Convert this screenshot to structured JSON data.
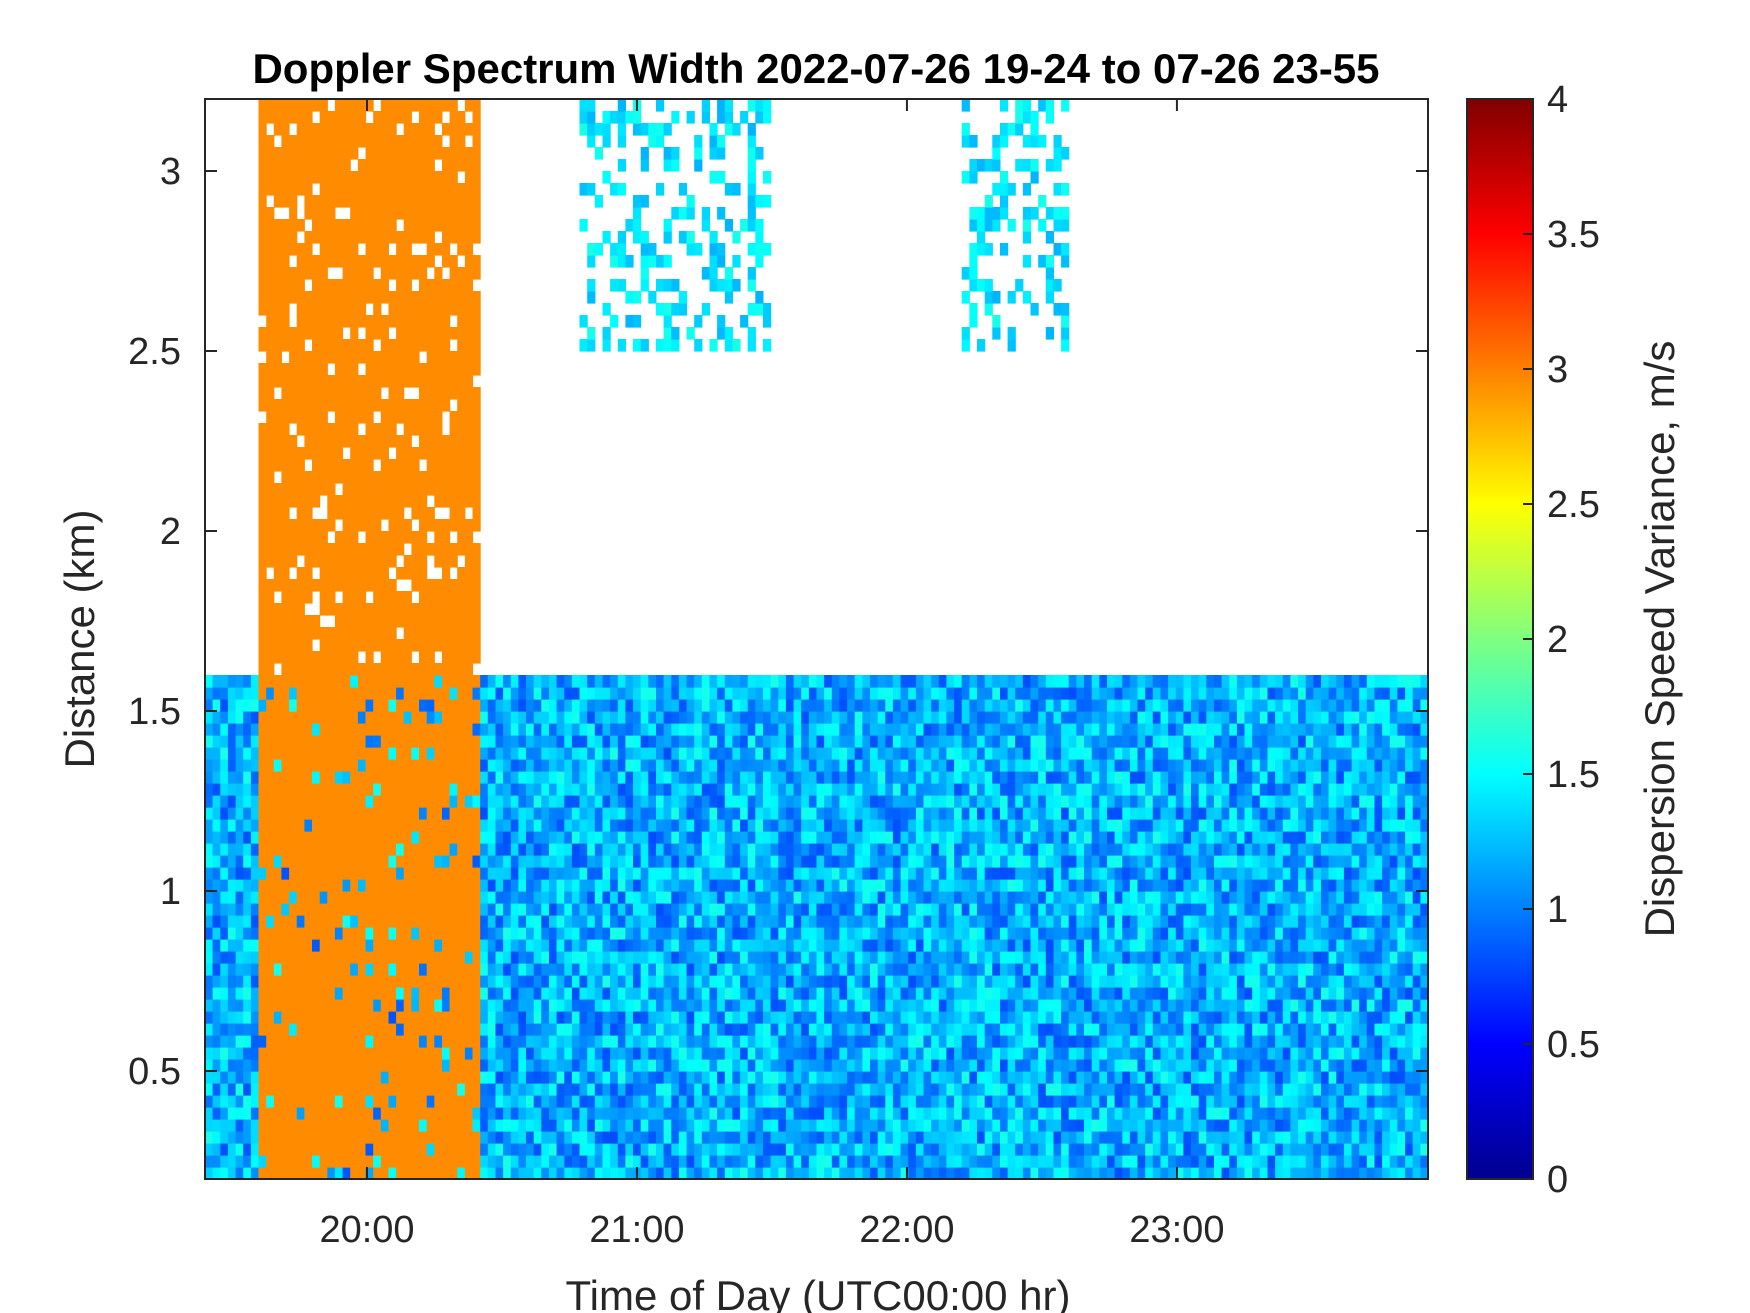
{
  "chart_data": {
    "type": "heatmap",
    "title": "Doppler Spectrum Width 2022-07-26 19-24 to 07-26 23-55",
    "xlabel": "Time of Day (UTC00:00 hr)",
    "ylabel": "Distance (km)",
    "colorbar_label": "Dispersion Speed Variance, m/s",
    "colormap": "jet",
    "x_range_hours": [
      19.4,
      23.93
    ],
    "ylim": [
      0.2,
      3.2
    ],
    "clim": [
      0,
      4
    ],
    "x_ticks": [
      {
        "value": 20,
        "label": "20:00"
      },
      {
        "value": 21,
        "label": "21:00"
      },
      {
        "value": 22,
        "label": "22:00"
      },
      {
        "value": 23,
        "label": "23:00"
      }
    ],
    "y_ticks": [
      {
        "value": 0.5,
        "label": "0.5"
      },
      {
        "value": 1,
        "label": "1"
      },
      {
        "value": 1.5,
        "label": "1.5"
      },
      {
        "value": 2,
        "label": "2"
      },
      {
        "value": 2.5,
        "label": "2.5"
      },
      {
        "value": 3,
        "label": "3"
      }
    ],
    "colorbar_ticks": [
      {
        "value": 0,
        "label": "0"
      },
      {
        "value": 0.5,
        "label": "0.5"
      },
      {
        "value": 1,
        "label": "1"
      },
      {
        "value": 1.5,
        "label": "1.5"
      },
      {
        "value": 2,
        "label": "2"
      },
      {
        "value": 2.5,
        "label": "2.5"
      },
      {
        "value": 3,
        "label": "3"
      },
      {
        "value": 3.5,
        "label": "3.5"
      },
      {
        "value": 4,
        "label": "4"
      }
    ],
    "regions": [
      {
        "kind": "boundary_layer",
        "x": [
          19.4,
          23.93
        ],
        "y": [
          0.2,
          1.6
        ],
        "typical_value": 1.2
      },
      {
        "kind": "saturated",
        "x": [
          19.6,
          20.43
        ],
        "y": [
          0.2,
          3.2
        ],
        "value": 2.95
      },
      {
        "kind": "clouds",
        "x": [
          20.8,
          21.5
        ],
        "y": [
          2.5,
          3.2
        ],
        "typical_value": 1.4
      },
      {
        "kind": "clouds",
        "x": [
          22.2,
          22.6
        ],
        "y": [
          2.5,
          3.2
        ],
        "typical_value": 1.4
      }
    ]
  }
}
